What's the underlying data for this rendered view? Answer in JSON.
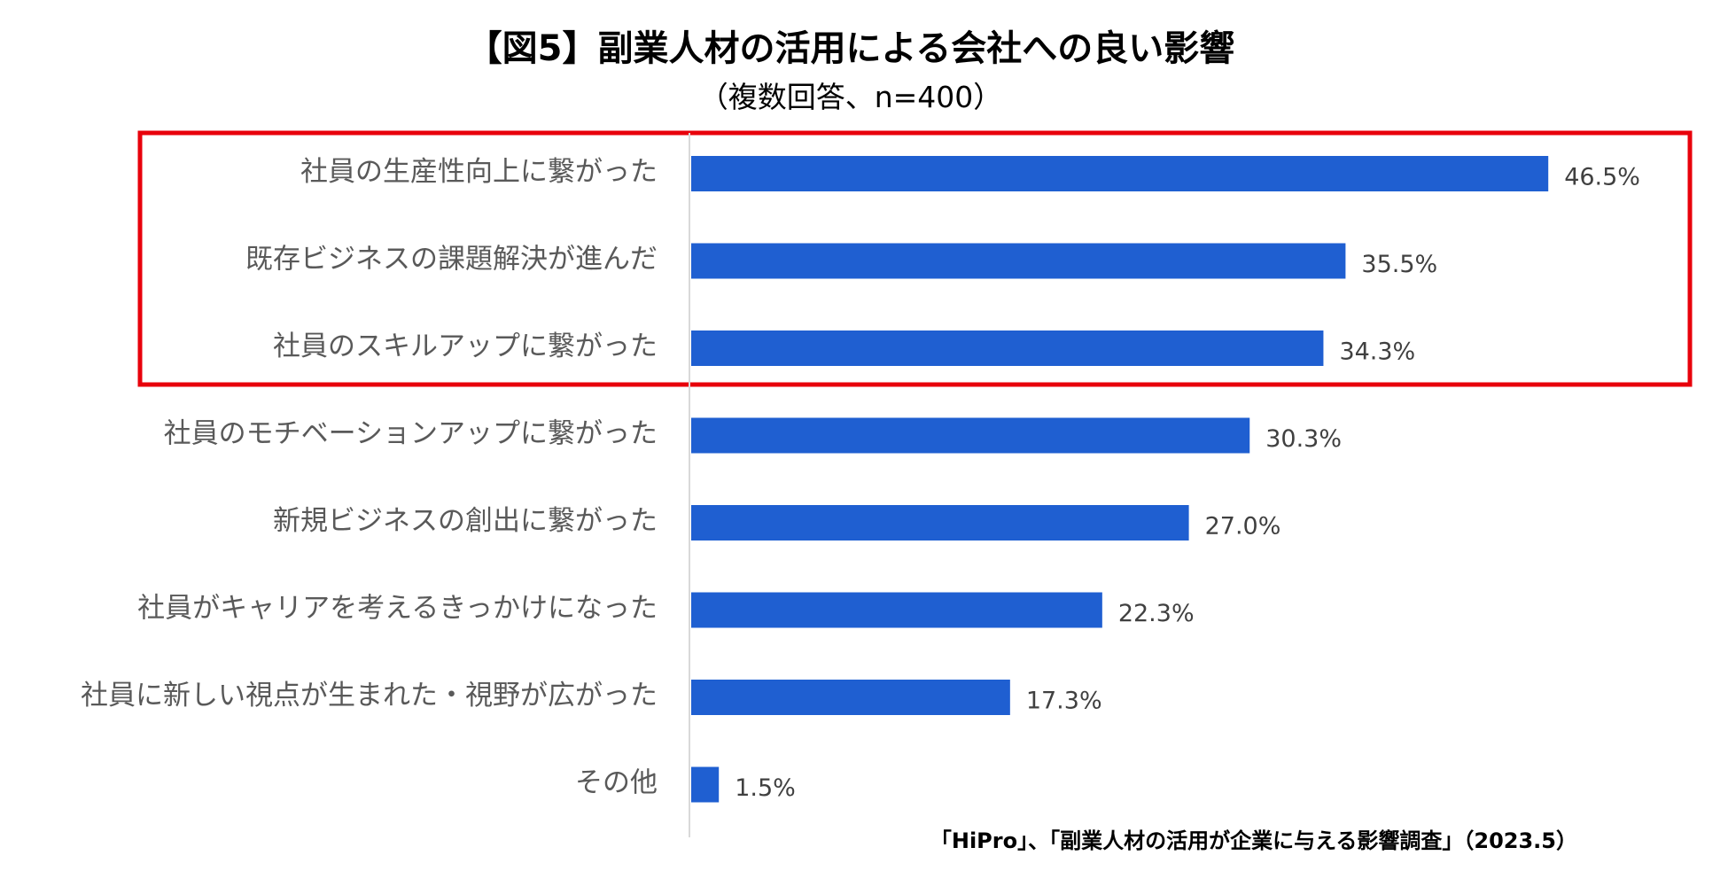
{
  "chart_data": {
    "type": "bar",
    "orientation": "horizontal",
    "title": "【図5】副業人材の活用による会社への良い影響",
    "subtitle": "（複数回答、n=400）",
    "categories": [
      "社員の生産性向上に繋がった",
      "既存ビジネスの課題解決が進んだ",
      "社員のスキルアップに繋がった",
      "社員のモチベーションアップに繋がった",
      "新規ビジネスの創出に繋がった",
      "社員がキャリアを考えるきっかけになった",
      "社員に新しい視点が生まれた・視野が広がった",
      "その他"
    ],
    "values": [
      46.5,
      35.5,
      34.3,
      30.3,
      27.0,
      22.3,
      17.3,
      1.5
    ],
    "value_labels": [
      "46.5%",
      "35.5%",
      "34.3%",
      "30.3%",
      "27.0%",
      "22.3%",
      "17.3%",
      "1.5%"
    ],
    "xlim": [
      0,
      50
    ],
    "grid": false,
    "legend": "none",
    "highlighted_categories": [
      0,
      1,
      2
    ],
    "source": "「HiPro」、「副業人材の活用が企業に与える影響調査」（2023.5）",
    "colors": {
      "bar": "#1F5FD1",
      "highlight_box": "#E8000B",
      "axis": "#D9D9D9",
      "category_text": "#595959",
      "value_text": "#404040"
    }
  }
}
